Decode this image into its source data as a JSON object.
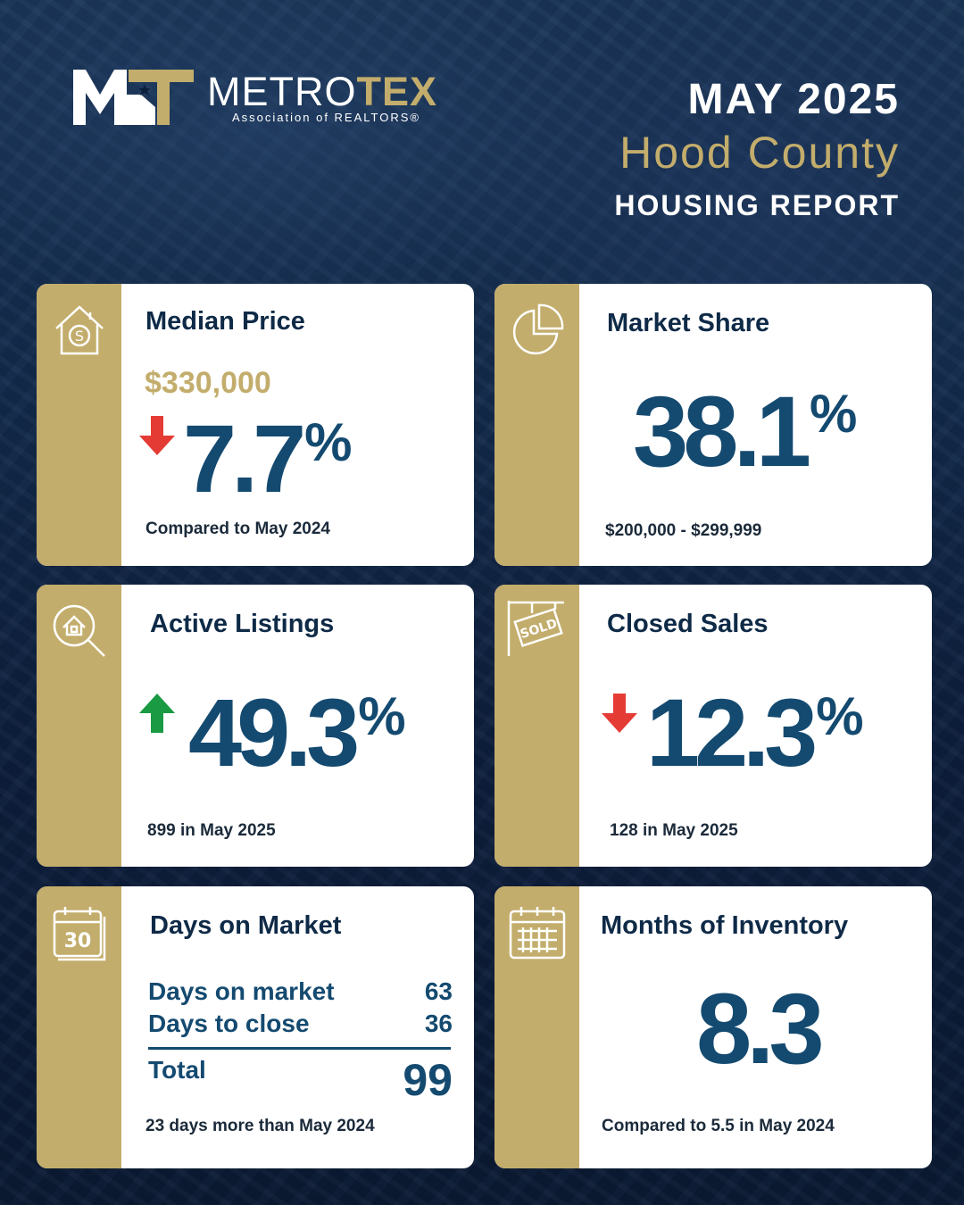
{
  "colors": {
    "navy": "#144a70",
    "gold": "#c3ad6c",
    "up": "#1a9a43",
    "down": "#e53b35",
    "background": "#0d1f3d"
  },
  "logo": {
    "mark": "MT",
    "word_main": "METRO",
    "word_accent": "TEX",
    "subtitle": "Association of REALTORS®"
  },
  "header": {
    "month": "MAY 2025",
    "county": "Hood County",
    "report": "HOUSING REPORT"
  },
  "cards": {
    "median_price": {
      "title": "Median Price",
      "price": "$330,000",
      "change": "7.7",
      "unit": "%",
      "direction": "down",
      "note": "Compared to May 2024",
      "icon": "house-dollar-icon"
    },
    "market_share": {
      "title": "Market Share",
      "value": "38.1",
      "unit": "%",
      "note": "$200,000 - $299,999",
      "icon": "pie-chart-icon"
    },
    "active_listings": {
      "title": "Active Listings",
      "change": "49.3",
      "unit": "%",
      "direction": "up",
      "note": "899 in May 2025",
      "icon": "house-search-icon"
    },
    "closed_sales": {
      "title": "Closed Sales",
      "change": "12.3",
      "unit": "%",
      "direction": "down",
      "note": "128 in May 2025",
      "icon": "sold-sign-icon"
    },
    "days_on_market": {
      "title": "Days on Market",
      "rows": [
        {
          "label": "Days on market",
          "value": "63"
        },
        {
          "label": "Days to close",
          "value": "36"
        }
      ],
      "total_label": "Total",
      "total_value": "99",
      "note": "23 days more than May 2024",
      "icon": "calendar-30-icon",
      "icon_text": "30"
    },
    "months_inventory": {
      "title": "Months of Inventory",
      "value": "8.3",
      "note": "Compared to 5.5 in May 2024",
      "icon": "calendar-grid-icon"
    }
  }
}
